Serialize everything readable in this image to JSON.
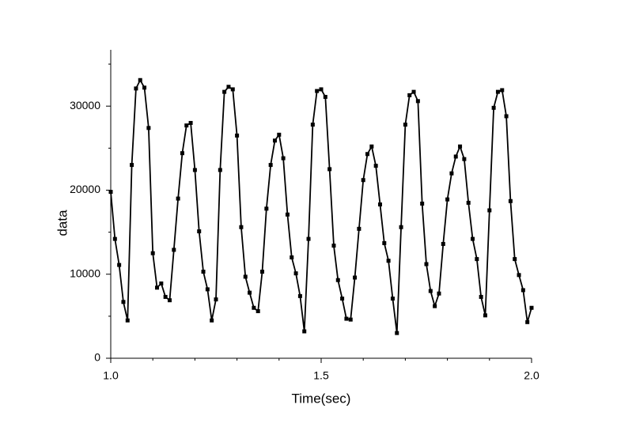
{
  "chart_data": {
    "type": "line",
    "x_label": "Time(sec)",
    "y_label": "data",
    "x": [
      1.0,
      1.01,
      1.02,
      1.03,
      1.04,
      1.05,
      1.06,
      1.07,
      1.08,
      1.09,
      1.1,
      1.11,
      1.12,
      1.13,
      1.14,
      1.15,
      1.16,
      1.17,
      1.18,
      1.19,
      1.2,
      1.21,
      1.22,
      1.23,
      1.24,
      1.25,
      1.26,
      1.27,
      1.28,
      1.29,
      1.3,
      1.31,
      1.32,
      1.33,
      1.34,
      1.35,
      1.36,
      1.37,
      1.38,
      1.39,
      1.4,
      1.41,
      1.42,
      1.43,
      1.44,
      1.45,
      1.46,
      1.47,
      1.48,
      1.49,
      1.5,
      1.51,
      1.52,
      1.53,
      1.54,
      1.55,
      1.56,
      1.57,
      1.58,
      1.59,
      1.6,
      1.61,
      1.62,
      1.63,
      1.64,
      1.65,
      1.66,
      1.67,
      1.68,
      1.69,
      1.7,
      1.71,
      1.72,
      1.73,
      1.74,
      1.75,
      1.76,
      1.77,
      1.78,
      1.79,
      1.8,
      1.81,
      1.82,
      1.83,
      1.84,
      1.85,
      1.86,
      1.87,
      1.88,
      1.89,
      1.9,
      1.91,
      1.92,
      1.93,
      1.94,
      1.95,
      1.96,
      1.97,
      1.98,
      1.99,
      2.0
    ],
    "series": [
      {
        "name": "data",
        "color": "#000000",
        "values": [
          19800,
          14200,
          11100,
          6700,
          4500,
          23000,
          32100,
          33100,
          32200,
          27400,
          12500,
          8400,
          8900,
          7300,
          6900,
          12900,
          19000,
          24400,
          27700,
          28000,
          22400,
          15100,
          10300,
          8200,
          4500,
          7000,
          22400,
          31700,
          32300,
          32000,
          26500,
          15600,
          9700,
          7800,
          6000,
          5600,
          10300,
          17800,
          23000,
          25900,
          26600,
          23800,
          17100,
          12000,
          10100,
          7400,
          3200,
          14200,
          27800,
          31800,
          32000,
          31100,
          22500,
          13400,
          9300,
          7100,
          4700,
          4600,
          9600,
          15400,
          21200,
          24300,
          25200,
          22900,
          18300,
          13700,
          11600,
          7100,
          3000,
          15600,
          27800,
          31300,
          31700,
          30600,
          18400,
          11200,
          8000,
          6200,
          7700,
          13600,
          18900,
          22000,
          24000,
          25200,
          23700,
          18500,
          14200,
          11800,
          7300,
          5100,
          17600,
          29800,
          31700,
          31900,
          28800,
          18700,
          11800,
          9900,
          8100,
          4300,
          6000
        ]
      }
    ],
    "xlim": [
      1,
      2
    ],
    "xticks": [
      {
        "value": 1,
        "label": "1.0"
      },
      {
        "value": 1.5,
        "label": "1.5"
      },
      {
        "value": 2,
        "label": "2.0"
      }
    ],
    "xminorticks": [
      1.1,
      1.2,
      1.3,
      1.4,
      1.6,
      1.7,
      1.8,
      1.9
    ],
    "ylim": [
      0,
      36700
    ],
    "yticks": [
      0,
      10000,
      20000,
      30000
    ],
    "yminorticks": [
      5000,
      15000,
      25000,
      35000
    ]
  }
}
